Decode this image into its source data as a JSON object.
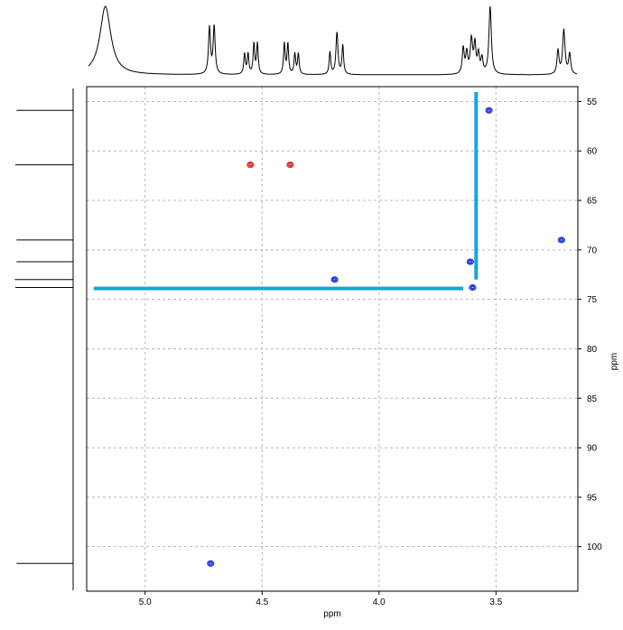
{
  "chart_data": {
    "type": "scatter",
    "title": "",
    "xlabel": "ppm",
    "ylabel": "ppm",
    "x_reversed": true,
    "y_reversed": true,
    "xlim": [
      5.25,
      3.15
    ],
    "ylim": [
      53.5,
      104.5
    ],
    "x_ticks": [
      5.0,
      4.5,
      4.0,
      3.5
    ],
    "x_tick_labels": [
      "5.0",
      "4.5",
      "4.0",
      "3.5"
    ],
    "y_ticks": [
      55,
      60,
      65,
      70,
      75,
      80,
      85,
      90,
      95,
      100
    ],
    "y_tick_labels": [
      "55",
      "60",
      "65",
      "70",
      "75",
      "80",
      "85",
      "90",
      "95",
      "100"
    ],
    "grid": true,
    "cross_peaks": [
      {
        "x": 4.72,
        "y": 101.7,
        "phase": "positive",
        "color": "#1a2fd6"
      },
      {
        "x": 4.55,
        "y": 61.4,
        "phase": "negative",
        "color": "#e02020"
      },
      {
        "x": 4.38,
        "y": 61.4,
        "phase": "negative",
        "color": "#e02020"
      },
      {
        "x": 4.19,
        "y": 73.0,
        "phase": "positive",
        "color": "#1a2fd6"
      },
      {
        "x": 3.61,
        "y": 71.2,
        "phase": "positive",
        "color": "#1a2fd6"
      },
      {
        "x": 3.6,
        "y": 73.8,
        "phase": "positive",
        "color": "#1a2fd6"
      },
      {
        "x": 3.53,
        "y": 55.9,
        "phase": "positive",
        "color": "#1a2fd6"
      },
      {
        "x": 3.22,
        "y": 69.0,
        "phase": "positive",
        "color": "#1a2fd6"
      }
    ],
    "highlight_lines": [
      {
        "orientation": "vertical",
        "x": 3.585,
        "y_from": 53.5,
        "y_to": 73.0,
        "color": "#1aa3dc"
      },
      {
        "orientation": "horizontal",
        "y": 73.9,
        "x_from": 5.22,
        "x_to": 3.64,
        "color": "#1aa3dc"
      }
    ],
    "top_projection_1h": {
      "peaks": [
        {
          "x": 5.17,
          "h": 1.0,
          "w": 0.028
        },
        {
          "x": 4.725,
          "h": 0.68,
          "w": 0.005
        },
        {
          "x": 4.705,
          "h": 0.7,
          "w": 0.005
        },
        {
          "x": 4.575,
          "h": 0.3,
          "w": 0.004
        },
        {
          "x": 4.56,
          "h": 0.3,
          "w": 0.004
        },
        {
          "x": 4.535,
          "h": 0.45,
          "w": 0.004
        },
        {
          "x": 4.52,
          "h": 0.45,
          "w": 0.004
        },
        {
          "x": 4.405,
          "h": 0.45,
          "w": 0.004
        },
        {
          "x": 4.39,
          "h": 0.45,
          "w": 0.004
        },
        {
          "x": 4.36,
          "h": 0.3,
          "w": 0.004
        },
        {
          "x": 4.345,
          "h": 0.3,
          "w": 0.004
        },
        {
          "x": 4.21,
          "h": 0.33,
          "w": 0.004
        },
        {
          "x": 4.18,
          "h": 0.62,
          "w": 0.005
        },
        {
          "x": 4.155,
          "h": 0.43,
          "w": 0.004
        },
        {
          "x": 3.64,
          "h": 0.38,
          "w": 0.005
        },
        {
          "x": 3.625,
          "h": 0.3,
          "w": 0.005
        },
        {
          "x": 3.605,
          "h": 0.5,
          "w": 0.006
        },
        {
          "x": 3.59,
          "h": 0.42,
          "w": 0.005
        },
        {
          "x": 3.575,
          "h": 0.28,
          "w": 0.005
        },
        {
          "x": 3.56,
          "h": 0.22,
          "w": 0.005
        },
        {
          "x": 3.525,
          "h": 1.0,
          "w": 0.006
        },
        {
          "x": 3.235,
          "h": 0.35,
          "w": 0.005
        },
        {
          "x": 3.21,
          "h": 0.65,
          "w": 0.006
        },
        {
          "x": 3.185,
          "h": 0.3,
          "w": 0.005
        }
      ]
    },
    "left_projection_13c": {
      "peaks": [
        {
          "y": 55.9,
          "h": 0.95
        },
        {
          "y": 61.4,
          "h": 0.97
        },
        {
          "y": 69.0,
          "h": 0.95
        },
        {
          "y": 71.2,
          "h": 0.95
        },
        {
          "y": 73.0,
          "h": 0.98
        },
        {
          "y": 73.8,
          "h": 0.97
        },
        {
          "y": 101.7,
          "h": 0.95
        }
      ]
    }
  }
}
